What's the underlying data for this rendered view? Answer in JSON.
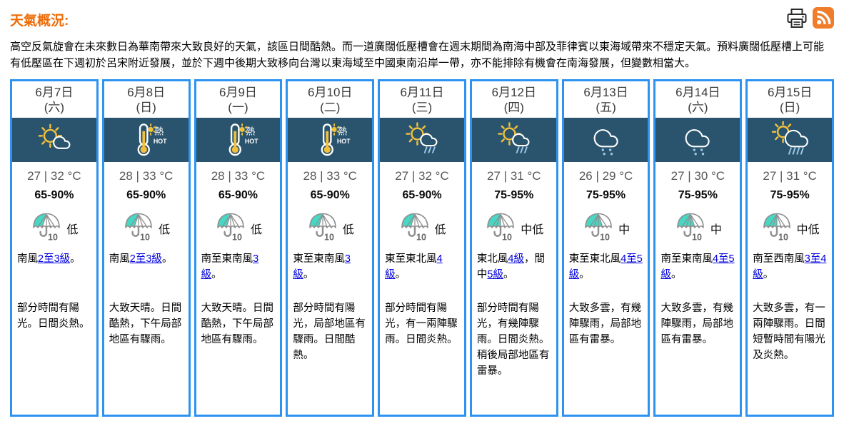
{
  "page": {
    "title": "天氣概況:",
    "intro": "高空反氣旋會在未來數日為華南帶來大致良好的天氣，該區日間酷熱。而一道廣闊低壓槽會在週末期間為南海中部及菲律賓以東海域帶來不穩定天氣。預料廣闊低壓槽上可能有低壓區在下週初於呂宋附近發展，並於下週中後期大致移向台灣以東海域至中國東南沿岸一帶，亦不能排除有機會在南海發展，但變數相當大。"
  },
  "toolbar": {
    "print_icon": "print-icon",
    "rss_icon": "rss-icon"
  },
  "colors": {
    "title_orange": "#ee6b06",
    "card_border_blue": "#2e93f0",
    "icon_band_navy": "#2a546e",
    "sun_yellow": "#f2c13b",
    "psr_teal": "#45d9c5",
    "rain_light_blue": "#9dc6e8",
    "link_blue": "#0000dd",
    "rss_orange": "#ef7d2a"
  },
  "icon_labels": {
    "very_hot_zh": "熱",
    "very_hot_en": "HOT",
    "psr_number": "10"
  },
  "forecast": [
    {
      "date": "6月7日",
      "weekday": "(六)",
      "icon": "sun-cloud",
      "temp": "27 | 32 °C",
      "humidity": "65-90%",
      "psr": {
        "level": "低",
        "segments": 2
      },
      "wind": [
        {
          "t": "南風"
        },
        {
          "t": "2至3級",
          "link": true
        },
        {
          "t": "。"
        }
      ],
      "description": "部分時間有陽光。日間炎熱。"
    },
    {
      "date": "6月8日",
      "weekday": "(日)",
      "icon": "hot",
      "temp": "28 | 33 °C",
      "humidity": "65-90%",
      "psr": {
        "level": "低",
        "segments": 2
      },
      "wind": [
        {
          "t": "南風"
        },
        {
          "t": "2至3級",
          "link": true
        },
        {
          "t": "。"
        }
      ],
      "description": "大致天晴。日間酷熱，下午局部地區有驟雨。"
    },
    {
      "date": "6月9日",
      "weekday": "(一)",
      "icon": "hot",
      "temp": "28 | 33 °C",
      "humidity": "65-90%",
      "psr": {
        "level": "低",
        "segments": 2
      },
      "wind": [
        {
          "t": "南至東南風"
        },
        {
          "t": "3級",
          "link": true
        },
        {
          "t": "。"
        }
      ],
      "description": "大致天晴。日間酷熱，下午局部地區有驟雨。"
    },
    {
      "date": "6月10日",
      "weekday": "(二)",
      "icon": "hot",
      "temp": "28 | 33 °C",
      "humidity": "65-90%",
      "psr": {
        "level": "低",
        "segments": 2
      },
      "wind": [
        {
          "t": "東至東南風"
        },
        {
          "t": "3級",
          "link": true
        },
        {
          "t": "。"
        }
      ],
      "description": "部分時間有陽光，局部地區有驟雨。日間酷熱。"
    },
    {
      "date": "6月11日",
      "weekday": "(三)",
      "icon": "sun-cloud-rain",
      "temp": "27 | 32 °C",
      "humidity": "65-90%",
      "psr": {
        "level": "低",
        "segments": 2
      },
      "wind": [
        {
          "t": "東至東北風"
        },
        {
          "t": "4級",
          "link": true
        },
        {
          "t": "。"
        }
      ],
      "description": "部分時間有陽光，有一兩陣驟雨。日間炎熱。"
    },
    {
      "date": "6月12日",
      "weekday": "(四)",
      "icon": "sun-cloud-rain",
      "temp": "27 | 31 °C",
      "humidity": "75-95%",
      "psr": {
        "level": "中低",
        "segments": 3
      },
      "wind": [
        {
          "t": "東北風"
        },
        {
          "t": "4級",
          "link": true
        },
        {
          "t": "，間中"
        },
        {
          "t": "5級",
          "link": true
        },
        {
          "t": "。"
        }
      ],
      "description": "部分時間有陽光，有幾陣驟雨。日間炎熱。稍後局部地區有雷暴。"
    },
    {
      "date": "6月13日",
      "weekday": "(五)",
      "icon": "cloud-rain",
      "temp": "26 | 29 °C",
      "humidity": "75-95%",
      "psr": {
        "level": "中",
        "segments": 4
      },
      "wind": [
        {
          "t": "東至東北風"
        },
        {
          "t": "4至5級",
          "link": true
        },
        {
          "t": "。"
        }
      ],
      "description": "大致多雲，有幾陣驟雨，局部地區有雷暴。"
    },
    {
      "date": "6月14日",
      "weekday": "(六)",
      "icon": "cloud-rain",
      "temp": "27 | 30 °C",
      "humidity": "75-95%",
      "psr": {
        "level": "中",
        "segments": 4
      },
      "wind": [
        {
          "t": "南至東南風"
        },
        {
          "t": "4至5級",
          "link": true
        },
        {
          "t": "。"
        }
      ],
      "description": "大致多雲，有幾陣驟雨，局部地區有雷暴。"
    },
    {
      "date": "6月15日",
      "weekday": "(日)",
      "icon": "sun-heavy-rain",
      "temp": "27 | 31 °C",
      "humidity": "75-95%",
      "psr": {
        "level": "中低",
        "segments": 3
      },
      "wind": [
        {
          "t": "南至西南風"
        },
        {
          "t": "3至4級",
          "link": true
        },
        {
          "t": "。"
        }
      ],
      "description": "大致多雲，有一兩陣驟雨。日間短暫時間有陽光及炎熱。"
    }
  ]
}
